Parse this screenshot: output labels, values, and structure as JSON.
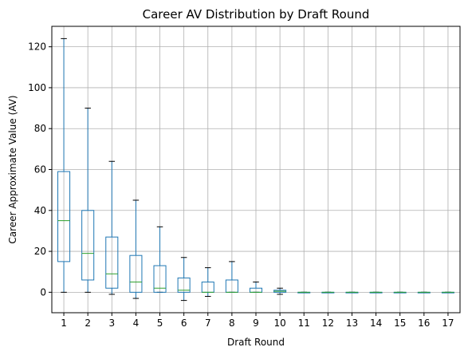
{
  "chart_data": {
    "type": "boxplot",
    "title": "Career AV Distribution by Draft Round",
    "xlabel": "Draft Round",
    "ylabel": "Career Approximate Value (AV)",
    "ylim": [
      -10,
      130
    ],
    "yticks": [
      0,
      20,
      40,
      60,
      80,
      100,
      120
    ],
    "grid": true,
    "colors": {
      "box": "#1f77b4",
      "median": "#2ca02c",
      "whisker_cap": "#000000",
      "grid": "#b0b0b0"
    },
    "categories": [
      "1",
      "2",
      "3",
      "4",
      "5",
      "6",
      "7",
      "8",
      "9",
      "10",
      "11",
      "12",
      "13",
      "14",
      "15",
      "16",
      "17"
    ],
    "boxes": [
      {
        "round": "1",
        "whislo": 0,
        "q1": 15,
        "median": 35,
        "q3": 59,
        "whishi": 124
      },
      {
        "round": "2",
        "whislo": 0,
        "q1": 6,
        "median": 19,
        "q3": 40,
        "whishi": 90
      },
      {
        "round": "3",
        "whislo": -1,
        "q1": 2,
        "median": 9,
        "q3": 27,
        "whishi": 64
      },
      {
        "round": "4",
        "whislo": -3,
        "q1": 0,
        "median": 5,
        "q3": 18,
        "whishi": 45
      },
      {
        "round": "5",
        "whislo": 0,
        "q1": 0,
        "median": 2,
        "q3": 13,
        "whishi": 32
      },
      {
        "round": "6",
        "whislo": -4,
        "q1": 0,
        "median": 1,
        "q3": 7,
        "whishi": 17
      },
      {
        "round": "7",
        "whislo": -2,
        "q1": 0,
        "median": 0,
        "q3": 5,
        "whishi": 12
      },
      {
        "round": "8",
        "whislo": 0,
        "q1": 0,
        "median": 0,
        "q3": 6,
        "whishi": 15
      },
      {
        "round": "9",
        "whislo": 0,
        "q1": 0,
        "median": 0,
        "q3": 2,
        "whishi": 5
      },
      {
        "round": "10",
        "whislo": -1,
        "q1": 0,
        "median": 0.5,
        "q3": 1,
        "whishi": 2
      },
      {
        "round": "11",
        "whislo": 0,
        "q1": 0,
        "median": 0,
        "q3": 0,
        "whishi": 0
      },
      {
        "round": "12",
        "whislo": 0,
        "q1": 0,
        "median": 0,
        "q3": 0,
        "whishi": 0
      },
      {
        "round": "13",
        "whislo": 0,
        "q1": 0,
        "median": 0,
        "q3": 0,
        "whishi": 0
      },
      {
        "round": "14",
        "whislo": 0,
        "q1": 0,
        "median": 0,
        "q3": 0,
        "whishi": 0
      },
      {
        "round": "15",
        "whislo": 0,
        "q1": 0,
        "median": 0,
        "q3": 0,
        "whishi": 0
      },
      {
        "round": "16",
        "whislo": 0,
        "q1": 0,
        "median": 0,
        "q3": 0,
        "whishi": 0
      },
      {
        "round": "17",
        "whislo": 0,
        "q1": 0,
        "median": 0,
        "q3": 0,
        "whishi": 0
      }
    ]
  }
}
